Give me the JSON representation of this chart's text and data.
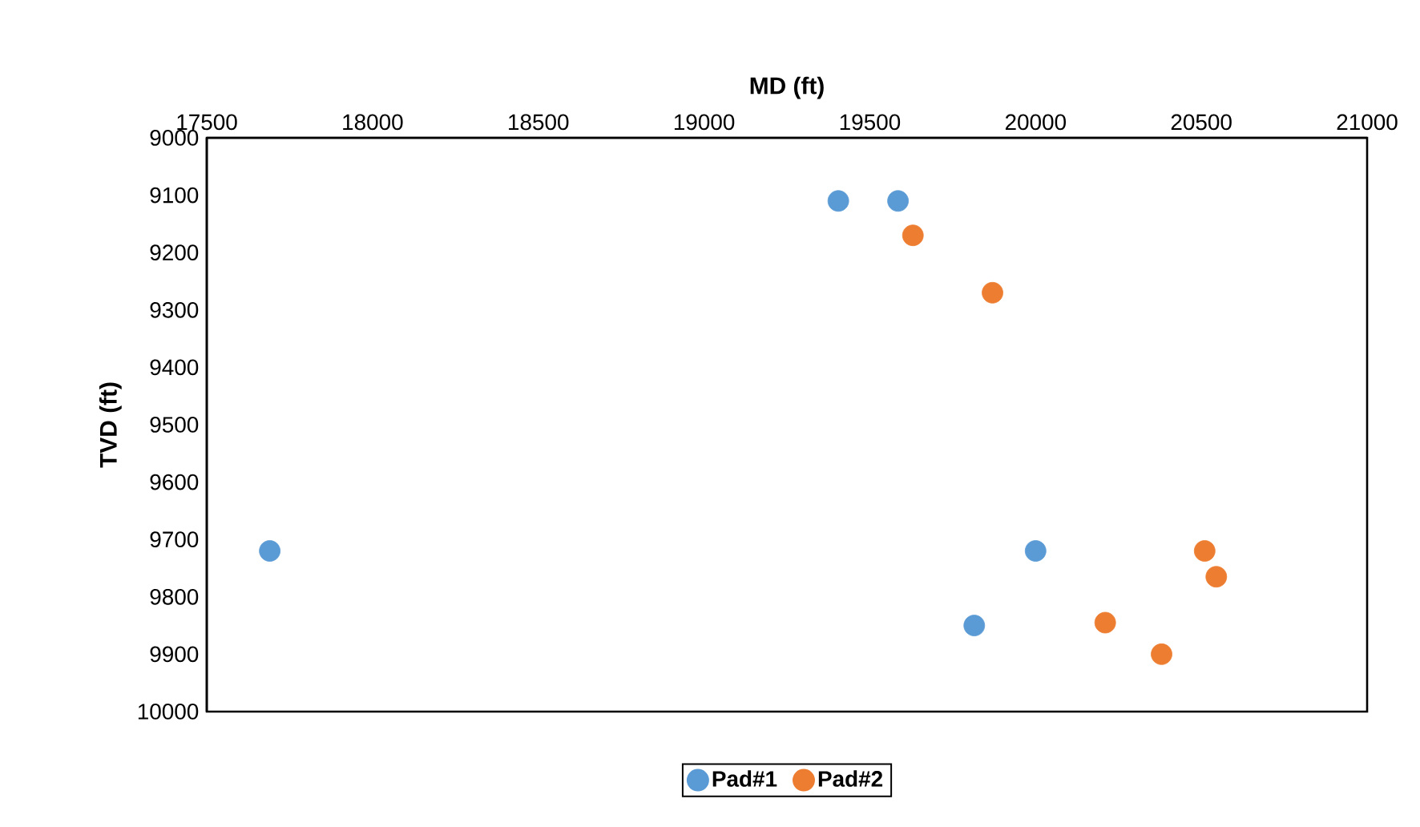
{
  "chart_data": {
    "type": "scatter",
    "xlabel": "MD (ft)",
    "ylabel": "TVD (ft)",
    "xlim": [
      17500,
      21000
    ],
    "xticks": [
      17500,
      18000,
      18500,
      19000,
      19500,
      20000,
      20500,
      21000
    ],
    "ylim": [
      10000,
      9000
    ],
    "yticks": [
      9000,
      9100,
      9200,
      9300,
      9400,
      9500,
      9600,
      9700,
      9800,
      9900,
      10000
    ],
    "marker": "circle",
    "legend": "bottom",
    "series": [
      {
        "name": "Pad#1",
        "color": "#5b9bd5",
        "x": [
          19405,
          19585,
          17690,
          20000,
          19815
        ],
        "values": [
          9110,
          9110,
          9720,
          9720,
          9850
        ]
      },
      {
        "name": "Pad#2",
        "color": "#ed7d31",
        "x": [
          19630,
          19870,
          20510,
          20545,
          20210,
          20380
        ],
        "values": [
          9170,
          9270,
          9720,
          9765,
          9845,
          9900
        ]
      }
    ]
  }
}
